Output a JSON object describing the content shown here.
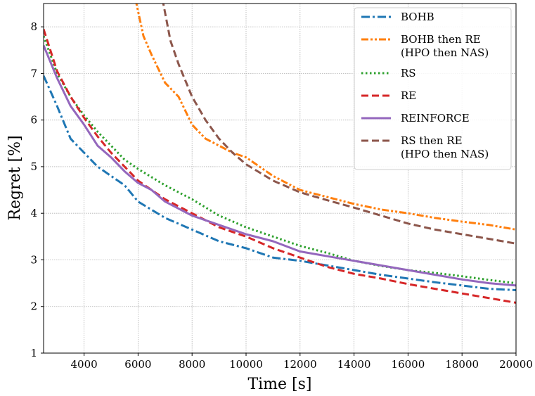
{
  "chart_data": {
    "type": "line",
    "xlabel": "Time [s]",
    "ylabel": "Regret [%]",
    "xlim": [
      2500,
      20000
    ],
    "ylim": [
      1,
      8.5
    ],
    "x_ticks": [
      4000,
      6000,
      8000,
      10000,
      12000,
      14000,
      16000,
      18000,
      20000
    ],
    "y_ticks": [
      1,
      2,
      3,
      4,
      5,
      6,
      7,
      8
    ],
    "grid": true,
    "legend_position": "top-right",
    "series": [
      {
        "name": "BOHB",
        "color": "#1f77b4",
        "dash": "dash-dot",
        "points": [
          [
            2500,
            6.95
          ],
          [
            3000,
            6.3
          ],
          [
            3500,
            5.6
          ],
          [
            4000,
            5.3
          ],
          [
            4500,
            5.0
          ],
          [
            5000,
            4.8
          ],
          [
            5500,
            4.6
          ],
          [
            6000,
            4.25
          ],
          [
            7000,
            3.9
          ],
          [
            8000,
            3.65
          ],
          [
            9000,
            3.4
          ],
          [
            10000,
            3.25
          ],
          [
            11000,
            3.05
          ],
          [
            12000,
            2.98
          ],
          [
            13000,
            2.88
          ],
          [
            14000,
            2.78
          ],
          [
            15000,
            2.68
          ],
          [
            16000,
            2.6
          ],
          [
            17000,
            2.52
          ],
          [
            18000,
            2.45
          ],
          [
            19000,
            2.38
          ],
          [
            20000,
            2.35
          ]
        ]
      },
      {
        "name": "BOHB then RE\n(HPO then NAS)",
        "color": "#ff7f0e",
        "dash": "dash-dot-dot",
        "points": [
          [
            5900,
            8.6
          ],
          [
            6200,
            7.8
          ],
          [
            6500,
            7.4
          ],
          [
            7000,
            6.8
          ],
          [
            7500,
            6.5
          ],
          [
            8000,
            5.9
          ],
          [
            8500,
            5.6
          ],
          [
            9000,
            5.45
          ],
          [
            9500,
            5.3
          ],
          [
            10000,
            5.2
          ],
          [
            11000,
            4.8
          ],
          [
            12000,
            4.5
          ],
          [
            13000,
            4.35
          ],
          [
            14000,
            4.2
          ],
          [
            15000,
            4.08
          ],
          [
            16000,
            4.0
          ],
          [
            17000,
            3.9
          ],
          [
            18000,
            3.82
          ],
          [
            19000,
            3.75
          ],
          [
            20000,
            3.65
          ]
        ]
      },
      {
        "name": "RS",
        "color": "#2ca02c",
        "dash": "dotted",
        "points": [
          [
            2500,
            7.8
          ],
          [
            3000,
            7.0
          ],
          [
            3500,
            6.5
          ],
          [
            4000,
            6.1
          ],
          [
            4500,
            5.75
          ],
          [
            5000,
            5.45
          ],
          [
            5500,
            5.15
          ],
          [
            6000,
            4.95
          ],
          [
            7000,
            4.6
          ],
          [
            8000,
            4.3
          ],
          [
            9000,
            3.95
          ],
          [
            10000,
            3.7
          ],
          [
            11000,
            3.5
          ],
          [
            12000,
            3.3
          ],
          [
            13000,
            3.15
          ],
          [
            14000,
            2.98
          ],
          [
            15000,
            2.87
          ],
          [
            16000,
            2.78
          ],
          [
            17000,
            2.72
          ],
          [
            18000,
            2.65
          ],
          [
            19000,
            2.57
          ],
          [
            20000,
            2.5
          ]
        ]
      },
      {
        "name": "RE",
        "color": "#d62728",
        "dash": "dashed",
        "points": [
          [
            2500,
            7.95
          ],
          [
            3000,
            7.05
          ],
          [
            3500,
            6.5
          ],
          [
            4000,
            6.05
          ],
          [
            4500,
            5.65
          ],
          [
            5000,
            5.3
          ],
          [
            5500,
            5.0
          ],
          [
            6000,
            4.7
          ],
          [
            6500,
            4.5
          ],
          [
            7000,
            4.3
          ],
          [
            8000,
            4.0
          ],
          [
            9000,
            3.7
          ],
          [
            10000,
            3.5
          ],
          [
            11000,
            3.25
          ],
          [
            12000,
            3.05
          ],
          [
            13000,
            2.85
          ],
          [
            14000,
            2.7
          ],
          [
            15000,
            2.6
          ],
          [
            16000,
            2.48
          ],
          [
            17000,
            2.38
          ],
          [
            18000,
            2.28
          ],
          [
            19000,
            2.18
          ],
          [
            20000,
            2.08
          ]
        ]
      },
      {
        "name": "REINFORCE",
        "color": "#9467bd",
        "dash": "solid",
        "points": [
          [
            2500,
            7.6
          ],
          [
            3000,
            6.9
          ],
          [
            3500,
            6.3
          ],
          [
            4000,
            5.9
          ],
          [
            4500,
            5.45
          ],
          [
            5000,
            5.2
          ],
          [
            5500,
            4.9
          ],
          [
            6000,
            4.65
          ],
          [
            6500,
            4.5
          ],
          [
            7000,
            4.25
          ],
          [
            8000,
            3.95
          ],
          [
            9000,
            3.75
          ],
          [
            10000,
            3.55
          ],
          [
            11000,
            3.4
          ],
          [
            12000,
            3.18
          ],
          [
            13000,
            3.08
          ],
          [
            14000,
            2.98
          ],
          [
            15000,
            2.88
          ],
          [
            16000,
            2.78
          ],
          [
            17000,
            2.68
          ],
          [
            18000,
            2.58
          ],
          [
            19000,
            2.5
          ],
          [
            20000,
            2.45
          ]
        ]
      },
      {
        "name": "RS then RE\n(HPO then NAS)",
        "color": "#8c564b",
        "dash": "dashed",
        "points": [
          [
            6900,
            8.6
          ],
          [
            7200,
            7.7
          ],
          [
            7500,
            7.2
          ],
          [
            8000,
            6.5
          ],
          [
            8500,
            6.0
          ],
          [
            9000,
            5.6
          ],
          [
            9500,
            5.3
          ],
          [
            10000,
            5.05
          ],
          [
            11000,
            4.7
          ],
          [
            12000,
            4.45
          ],
          [
            13000,
            4.28
          ],
          [
            14000,
            4.12
          ],
          [
            15000,
            3.95
          ],
          [
            16000,
            3.78
          ],
          [
            17000,
            3.65
          ],
          [
            18000,
            3.55
          ],
          [
            19000,
            3.45
          ],
          [
            20000,
            3.35
          ]
        ]
      }
    ]
  }
}
